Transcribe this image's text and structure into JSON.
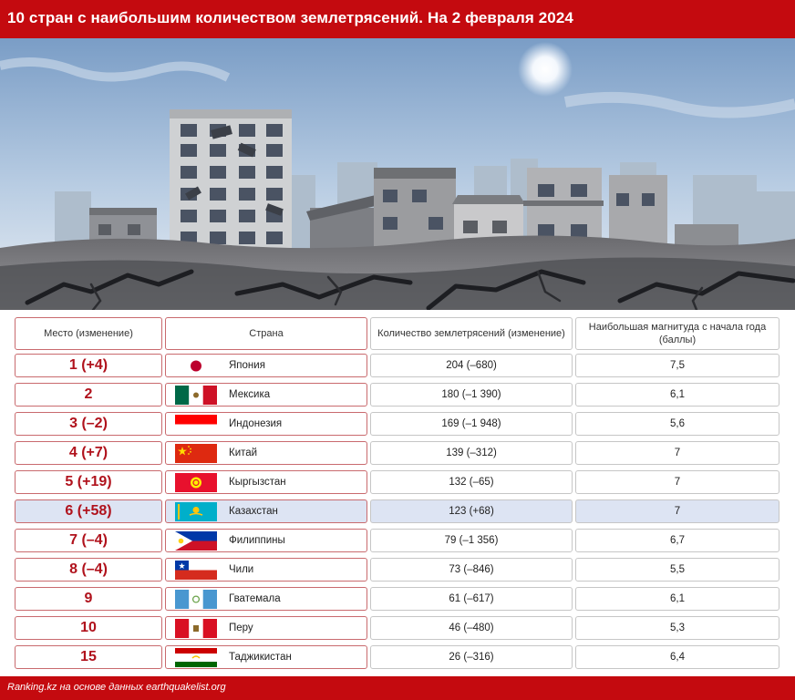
{
  "title": "10 стран с наибольшим количеством землетрясений. На 2 февраля 2024",
  "source": "Ranking.kz на основе данных earthquakelist.org",
  "colors": {
    "brand_red": "#c40a0f",
    "rank_red": "#b0121c",
    "highlight": "#dde4f3"
  },
  "chart_data": {
    "type": "table",
    "columns": [
      "Место (изменение)",
      "Страна",
      "Количество землетрясений (изменение)",
      "Наибольшая магнитуда с начала года (баллы)"
    ],
    "highlighted_row": 5,
    "rows": [
      {
        "rank": "1 (+4)",
        "country": "Япония",
        "flag": "japan-flag",
        "quakes": "204 (–680)",
        "magnitude": "7,5"
      },
      {
        "rank": "2",
        "country": "Мексика",
        "flag": "mexico-flag",
        "quakes": "180 (–1 390)",
        "magnitude": "6,1"
      },
      {
        "rank": "3 (–2)",
        "country": "Индонезия",
        "flag": "indonesia-flag",
        "quakes": "169 (–1 948)",
        "magnitude": "5,6"
      },
      {
        "rank": "4 (+7)",
        "country": "Китай",
        "flag": "china-flag",
        "quakes": "139 (–312)",
        "magnitude": "7"
      },
      {
        "rank": "5 (+19)",
        "country": "Кыргызстан",
        "flag": "kyrgyzstan-flag",
        "quakes": "132 (–65)",
        "magnitude": "7"
      },
      {
        "rank": "6 (+58)",
        "country": "Казахстан",
        "flag": "kazakhstan-flag",
        "quakes": "123 (+68)",
        "magnitude": "7"
      },
      {
        "rank": "7 (–4)",
        "country": "Филиппины",
        "flag": "philippines-flag",
        "quakes": "79 (–1 356)",
        "magnitude": "6,7"
      },
      {
        "rank": "8 (–4)",
        "country": "Чили",
        "flag": "chile-flag",
        "quakes": "73 (–846)",
        "magnitude": "5,5"
      },
      {
        "rank": "9",
        "country": "Гватемала",
        "flag": "guatemala-flag",
        "quakes": "61 (–617)",
        "magnitude": "6,1"
      },
      {
        "rank": "10",
        "country": "Перу",
        "flag": "peru-flag",
        "quakes": "46 (–480)",
        "magnitude": "5,3"
      },
      {
        "rank": "15",
        "country": "Таджикистан",
        "flag": "tajikistan-flag",
        "quakes": "26 (–316)",
        "magnitude": "6,4"
      }
    ]
  }
}
